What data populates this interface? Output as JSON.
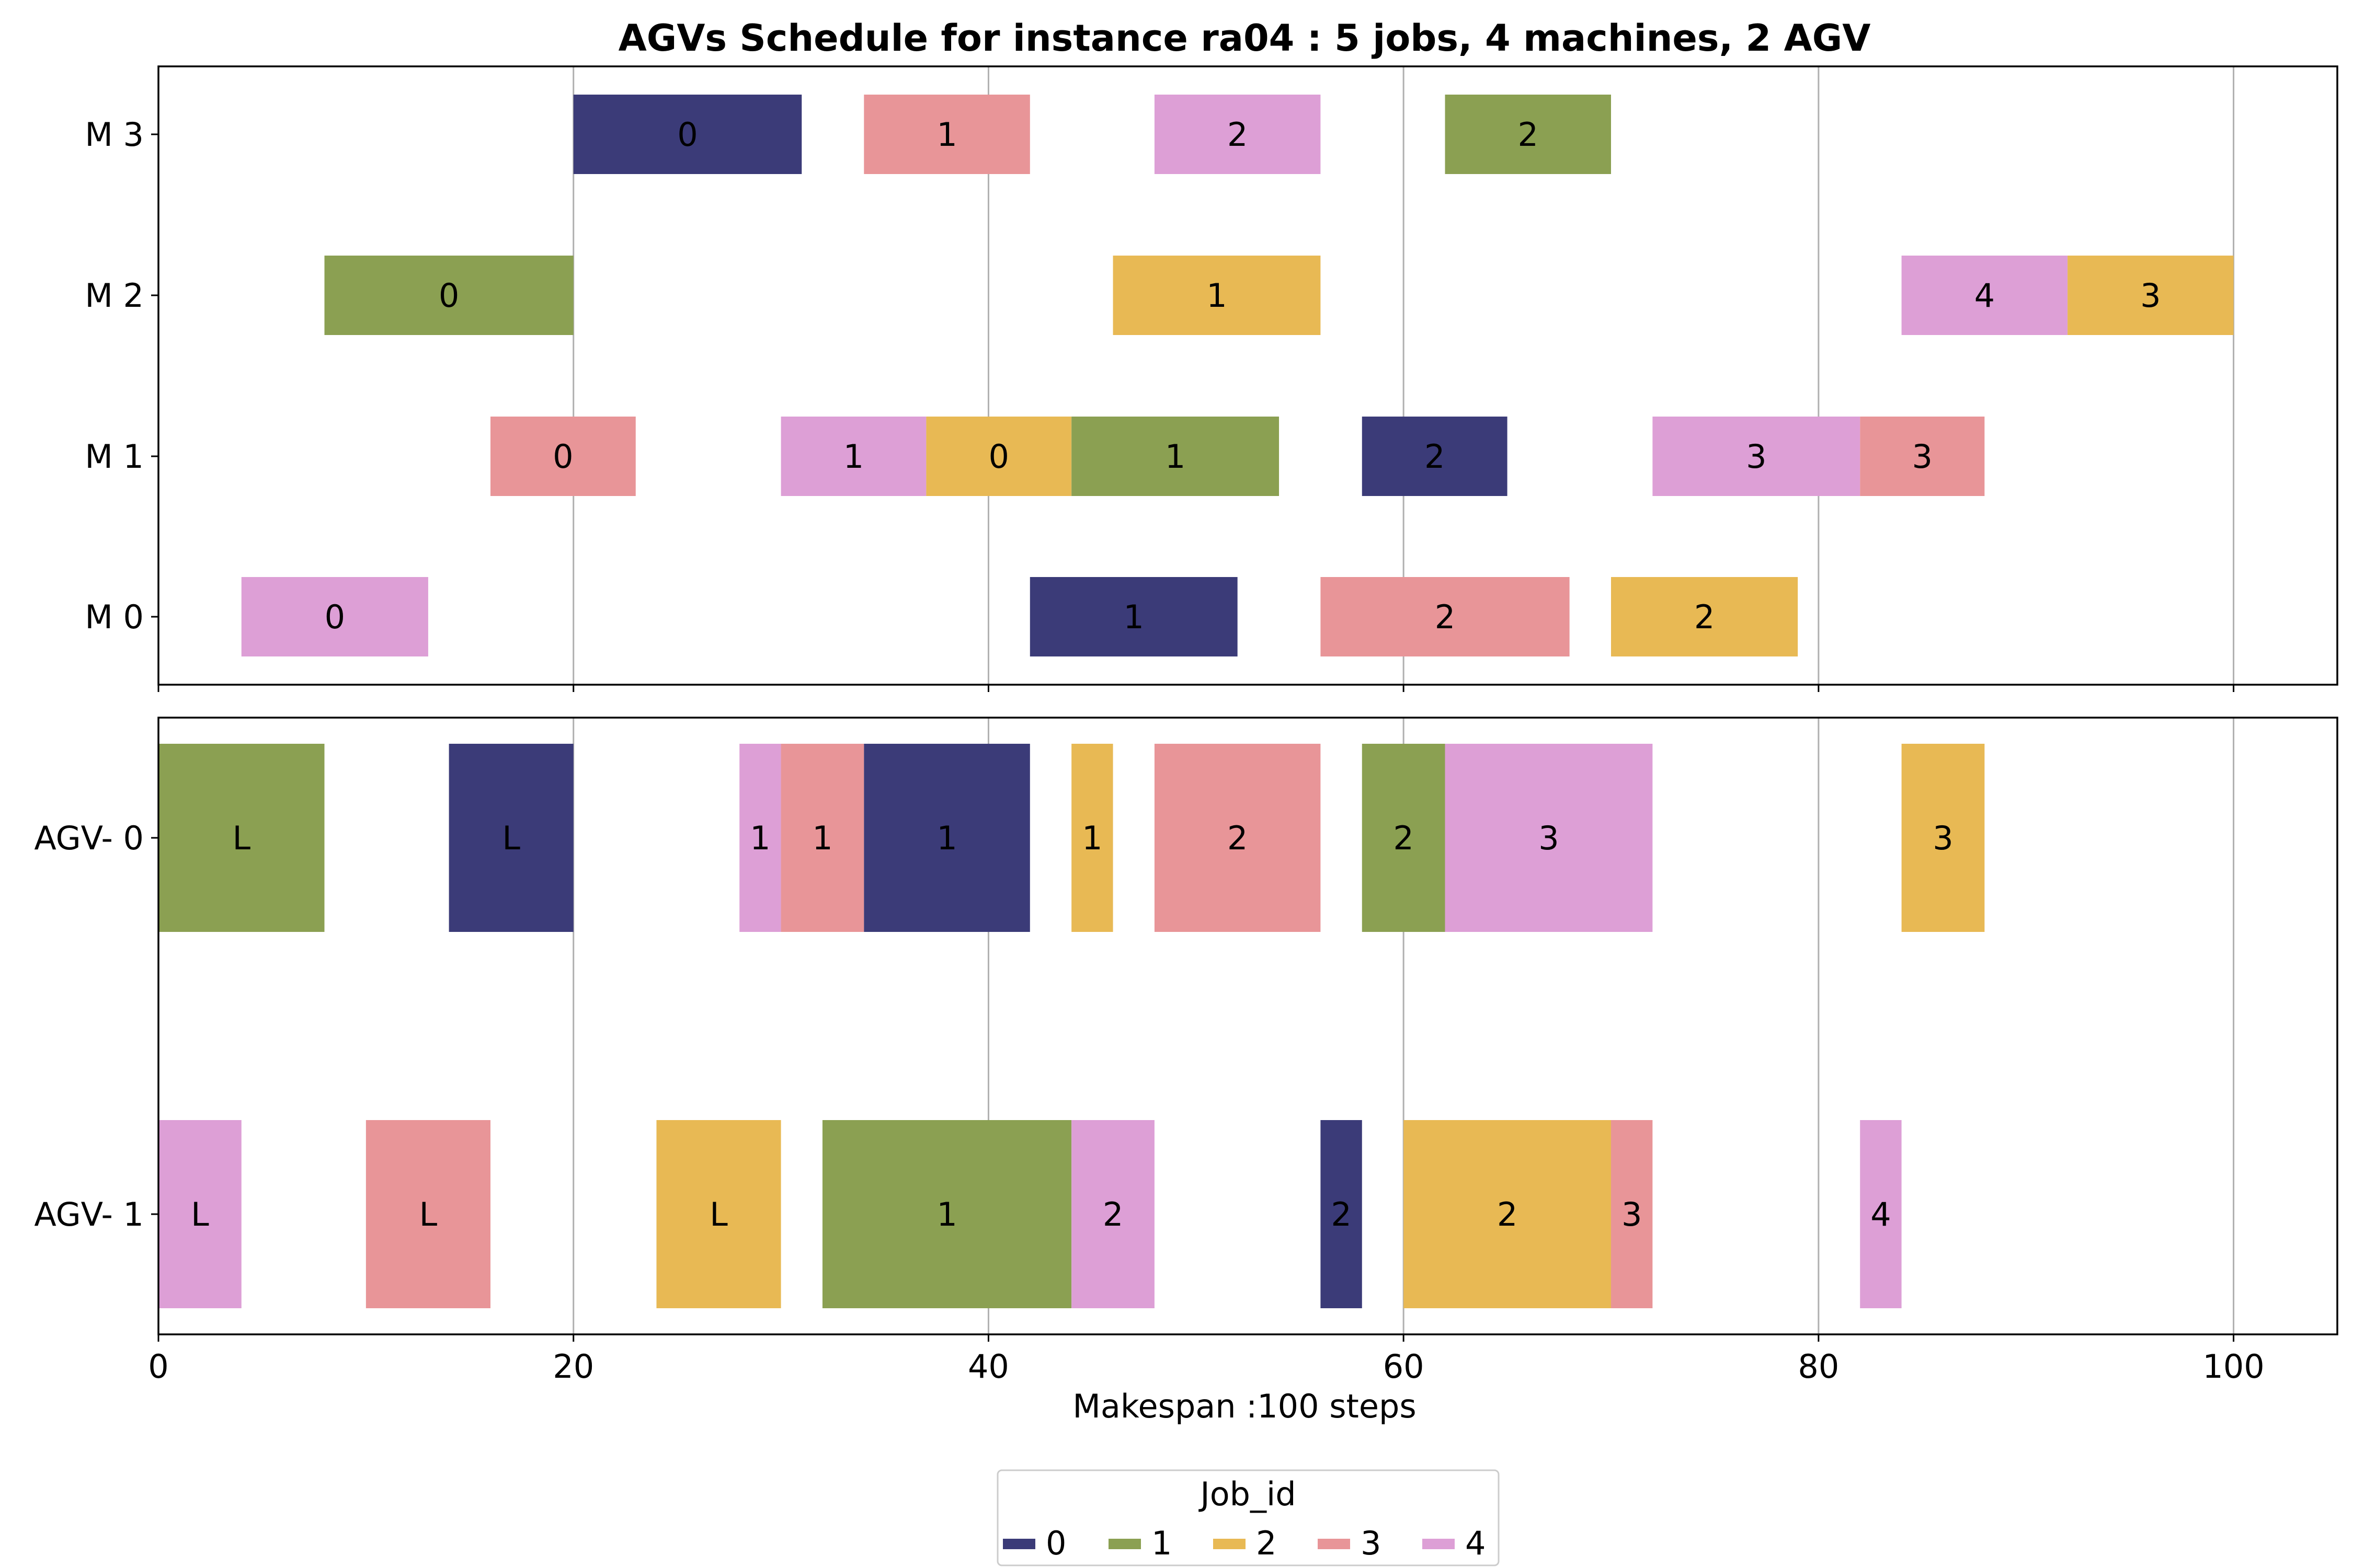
{
  "chart_data": {
    "type": "gantt",
    "title": "AGVs Schedule for instance ra04  : 5 jobs, 4 machines, 2 AGV",
    "xlabel": "Makespan :100 steps",
    "xlim": [
      0,
      105
    ],
    "xticks": [
      0,
      20,
      40,
      60,
      80,
      100
    ],
    "grid": "vertical",
    "legend": {
      "title": "Job_id",
      "placement": "bottom-center",
      "entries": [
        "0",
        "1",
        "2",
        "3",
        "4"
      ]
    },
    "job_colors": [
      "#3b3b78",
      "#8ba052",
      "#e8b954",
      "#e89598",
      "#dd9fd6"
    ],
    "panels": [
      {
        "name": "machines",
        "rows": [
          "M 0",
          "M 1",
          "M 2",
          "M 3"
        ],
        "bars": [
          {
            "row": "M 3",
            "start": 20,
            "end": 31,
            "job": 0,
            "label": "0"
          },
          {
            "row": "M 3",
            "start": 34,
            "end": 42,
            "job": 3,
            "label": "1"
          },
          {
            "row": "M 3",
            "start": 48,
            "end": 56,
            "job": 4,
            "label": "2"
          },
          {
            "row": "M 3",
            "start": 62,
            "end": 70,
            "job": 1,
            "label": "2"
          },
          {
            "row": "M 2",
            "start": 8,
            "end": 20,
            "job": 1,
            "label": "0"
          },
          {
            "row": "M 2",
            "start": 46,
            "end": 56,
            "job": 2,
            "label": "1"
          },
          {
            "row": "M 2",
            "start": 84,
            "end": 92,
            "job": 4,
            "label": "4"
          },
          {
            "row": "M 2",
            "start": 92,
            "end": 100,
            "job": 2,
            "label": "3"
          },
          {
            "row": "M 1",
            "start": 16,
            "end": 23,
            "job": 3,
            "label": "0"
          },
          {
            "row": "M 1",
            "start": 30,
            "end": 37,
            "job": 4,
            "label": "1"
          },
          {
            "row": "M 1",
            "start": 37,
            "end": 44,
            "job": 2,
            "label": "0"
          },
          {
            "row": "M 1",
            "start": 44,
            "end": 54,
            "job": 1,
            "label": "1"
          },
          {
            "row": "M 1",
            "start": 58,
            "end": 65,
            "job": 0,
            "label": "2"
          },
          {
            "row": "M 1",
            "start": 72,
            "end": 82,
            "job": 4,
            "label": "3"
          },
          {
            "row": "M 1",
            "start": 82,
            "end": 88,
            "job": 3,
            "label": "3"
          },
          {
            "row": "M 0",
            "start": 4,
            "end": 13,
            "job": 4,
            "label": "0"
          },
          {
            "row": "M 0",
            "start": 42,
            "end": 52,
            "job": 0,
            "label": "1"
          },
          {
            "row": "M 0",
            "start": 56,
            "end": 68,
            "job": 3,
            "label": "2"
          },
          {
            "row": "M 0",
            "start": 70,
            "end": 79,
            "job": 2,
            "label": "2"
          }
        ]
      },
      {
        "name": "agvs",
        "rows": [
          "AGV- 1",
          "AGV- 0"
        ],
        "bars": [
          {
            "row": "AGV- 0",
            "start": 0,
            "end": 8,
            "job": 1,
            "label": "L"
          },
          {
            "row": "AGV- 0",
            "start": 14,
            "end": 20,
            "job": 0,
            "label": "L"
          },
          {
            "row": "AGV- 0",
            "start": 28,
            "end": 30,
            "job": 4,
            "label": "1"
          },
          {
            "row": "AGV- 0",
            "start": 30,
            "end": 34,
            "job": 3,
            "label": "1"
          },
          {
            "row": "AGV- 0",
            "start": 34,
            "end": 42,
            "job": 0,
            "label": "1"
          },
          {
            "row": "AGV- 0",
            "start": 44,
            "end": 46,
            "job": 2,
            "label": "1"
          },
          {
            "row": "AGV- 0",
            "start": 48,
            "end": 56,
            "job": 3,
            "label": "2"
          },
          {
            "row": "AGV- 0",
            "start": 58,
            "end": 62,
            "job": 1,
            "label": "2"
          },
          {
            "row": "AGV- 0",
            "start": 62,
            "end": 72,
            "job": 4,
            "label": "3"
          },
          {
            "row": "AGV- 0",
            "start": 84,
            "end": 88,
            "job": 2,
            "label": "3"
          },
          {
            "row": "AGV- 1",
            "start": 0,
            "end": 4,
            "job": 4,
            "label": "L"
          },
          {
            "row": "AGV- 1",
            "start": 10,
            "end": 16,
            "job": 3,
            "label": "L"
          },
          {
            "row": "AGV- 1",
            "start": 24,
            "end": 30,
            "job": 2,
            "label": "L"
          },
          {
            "row": "AGV- 1",
            "start": 32,
            "end": 44,
            "job": 1,
            "label": "1"
          },
          {
            "row": "AGV- 1",
            "start": 44,
            "end": 48,
            "job": 4,
            "label": "2"
          },
          {
            "row": "AGV- 1",
            "start": 56,
            "end": 58,
            "job": 0,
            "label": "2"
          },
          {
            "row": "AGV- 1",
            "start": 60,
            "end": 70,
            "job": 2,
            "label": "2"
          },
          {
            "row": "AGV- 1",
            "start": 70,
            "end": 72,
            "job": 3,
            "label": "3"
          },
          {
            "row": "AGV- 1",
            "start": 82,
            "end": 84,
            "job": 4,
            "label": "4"
          }
        ]
      }
    ]
  }
}
